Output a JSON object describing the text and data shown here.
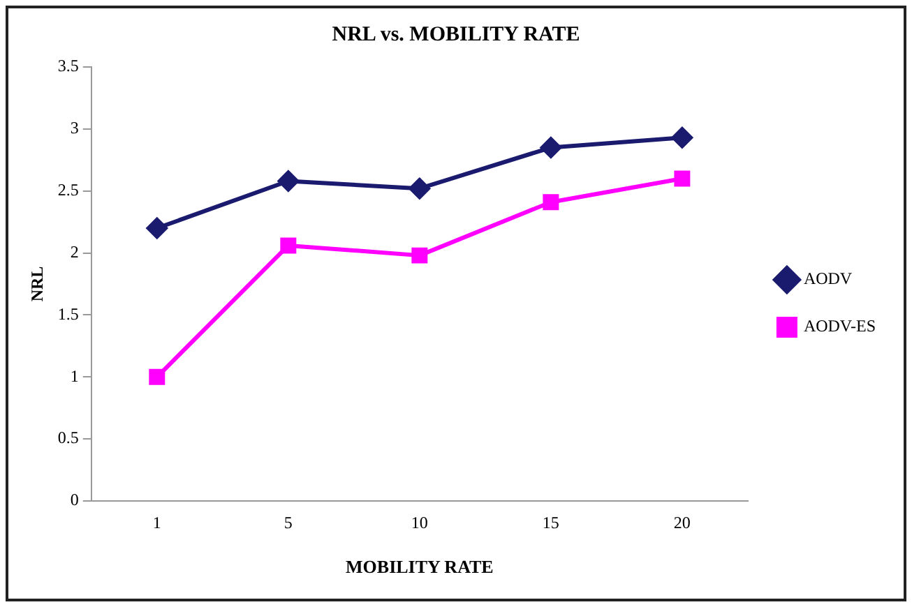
{
  "chart_data": {
    "type": "line",
    "title": "NRL vs. MOBILITY RATE",
    "xlabel": "MOBILITY RATE",
    "ylabel": "NRL",
    "categories": [
      "1",
      "5",
      "10",
      "15",
      "20"
    ],
    "series": [
      {
        "name": "AODV",
        "color": "#1a1a6e",
        "marker": "diamond",
        "values": [
          2.2,
          2.58,
          2.52,
          2.85,
          2.93
        ]
      },
      {
        "name": "AODV-ES",
        "color": "#ff00ff",
        "marker": "square",
        "values": [
          1.0,
          2.06,
          1.98,
          2.41,
          2.6
        ]
      }
    ],
    "ylim": [
      0,
      3.5
    ],
    "yticks": [
      0,
      0.5,
      1,
      1.5,
      2,
      2.5,
      3,
      3.5
    ],
    "grid": false,
    "legend": "right"
  }
}
